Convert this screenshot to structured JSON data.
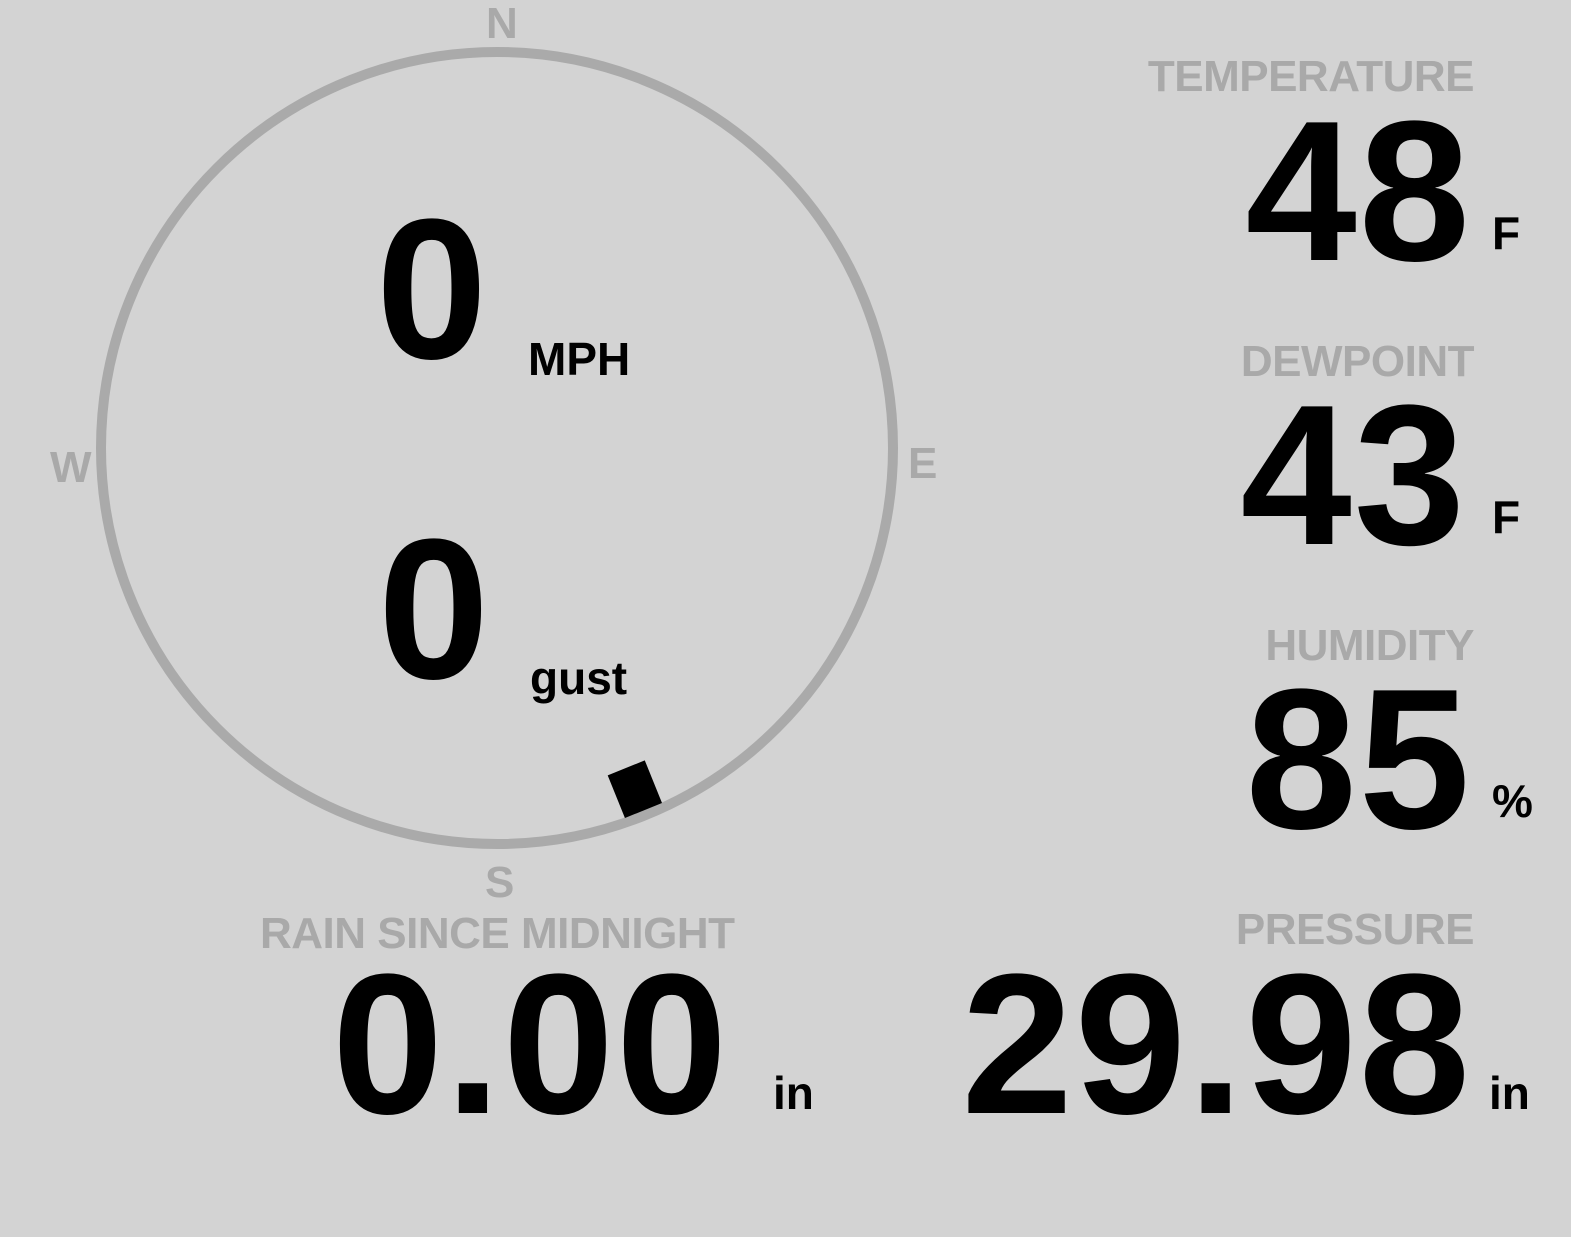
{
  "wind": {
    "speed": "0",
    "speed_unit": "MPH",
    "gust": "0",
    "gust_label": "gust",
    "direction_degrees": 158,
    "cardinals": {
      "n": "N",
      "e": "E",
      "s": "S",
      "w": "W"
    }
  },
  "temperature": {
    "label": "TEMPERATURE",
    "value": "48",
    "unit": "F"
  },
  "dewpoint": {
    "label": "DEWPOINT",
    "value": "43",
    "unit": "F"
  },
  "humidity": {
    "label": "HUMIDITY",
    "value": "85",
    "unit": "%"
  },
  "rain": {
    "label": "RAIN SINCE MIDNIGHT",
    "value": "0.00",
    "unit": "in"
  },
  "pressure": {
    "label": "PRESSURE",
    "value": "29.98",
    "unit": "in"
  },
  "colors": {
    "background": "#d3d3d3",
    "muted": "#a9a9a9",
    "text": "#000000"
  }
}
